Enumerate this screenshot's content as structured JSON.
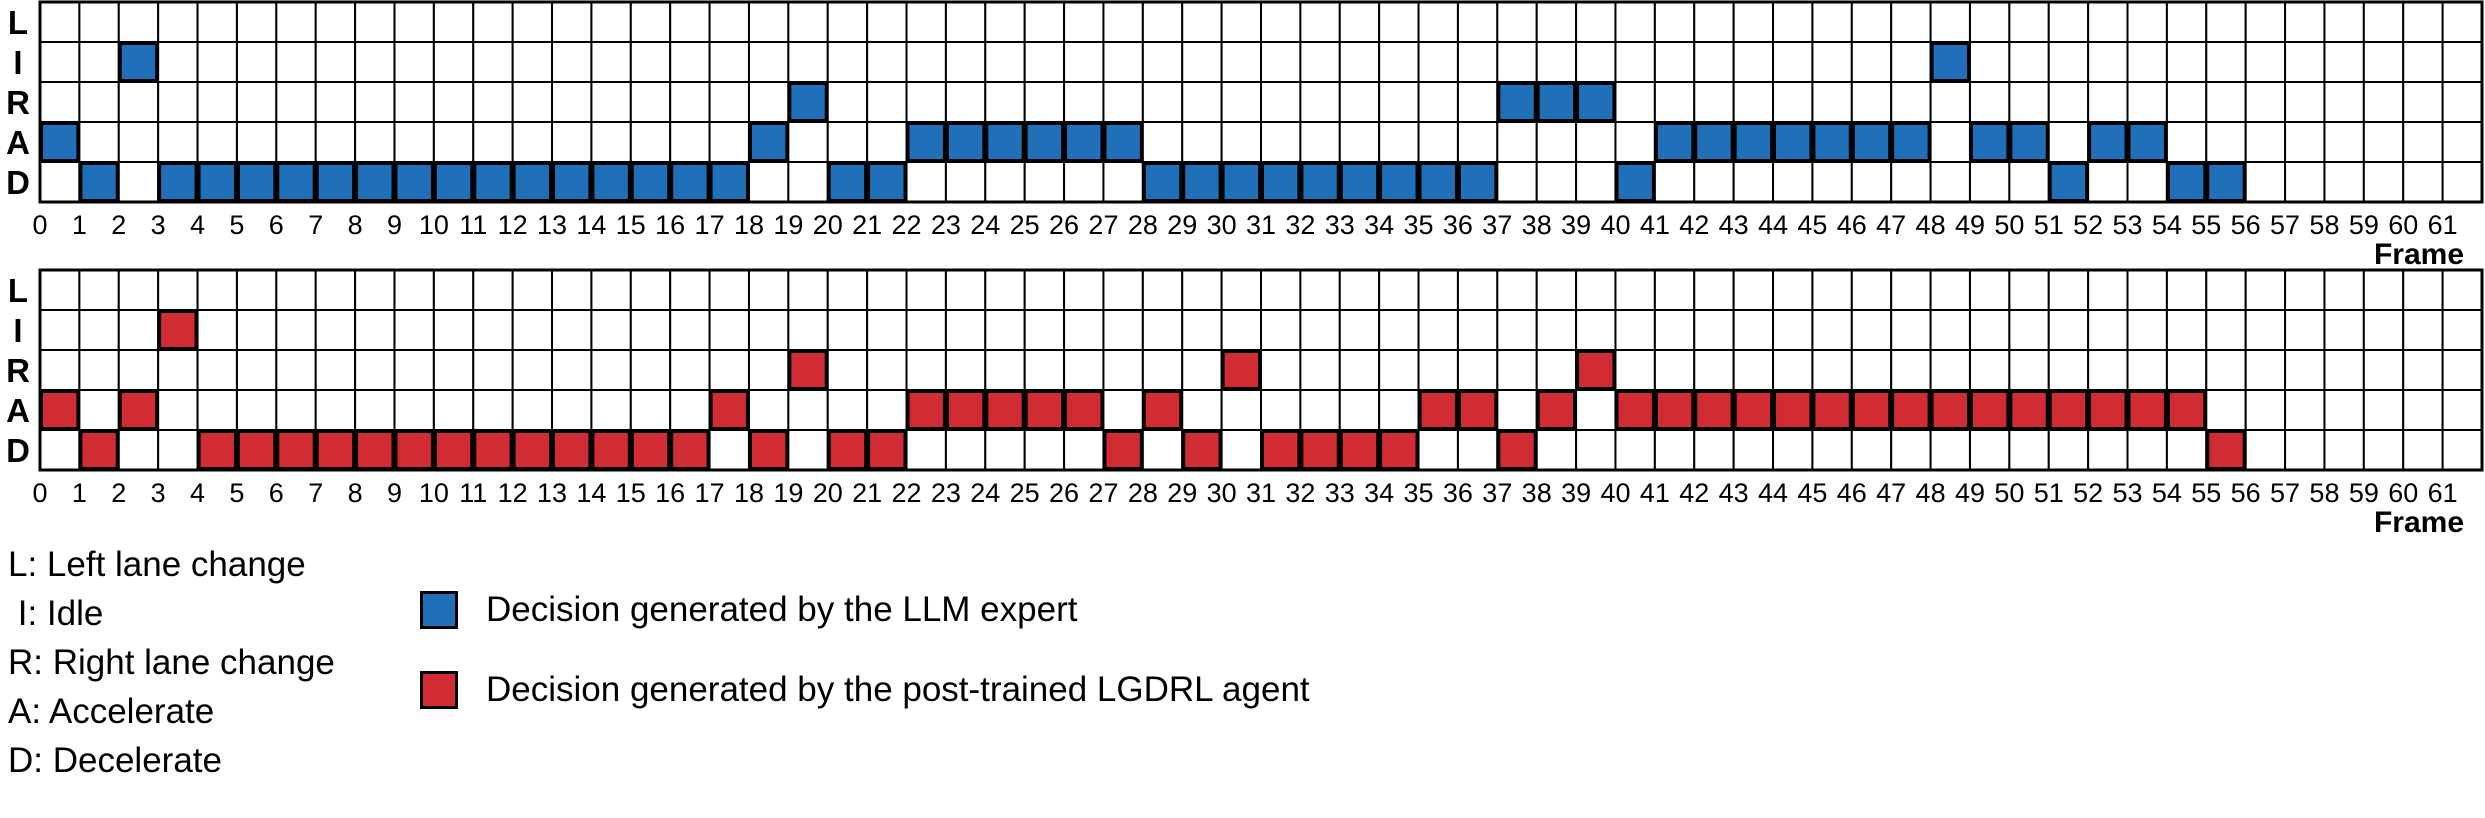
{
  "chart_data": [
    {
      "type": "table",
      "rows": [
        "L",
        "I",
        "R",
        "A",
        "D"
      ],
      "frames": [
        0,
        1,
        2,
        3,
        4,
        5,
        6,
        7,
        8,
        9,
        10,
        11,
        12,
        13,
        14,
        15,
        16,
        17,
        18,
        19,
        20,
        21,
        22,
        23,
        24,
        25,
        26,
        27,
        28,
        29,
        30,
        31,
        32,
        33,
        34,
        35,
        36,
        37,
        38,
        39,
        40,
        41,
        42,
        43,
        44,
        45,
        46,
        47,
        48,
        49,
        50,
        51,
        52,
        53,
        54,
        55,
        56,
        57,
        58,
        59,
        60,
        61
      ],
      "xlabel": "Frame",
      "series_name": "Decision generated by the LLM expert",
      "color": "#1f70b8",
      "decisions": [
        "A",
        "D",
        "I",
        "D",
        "D",
        "D",
        "D",
        "D",
        "D",
        "D",
        "D",
        "D",
        "D",
        "D",
        "D",
        "D",
        "D",
        "D",
        "A",
        "R",
        "D",
        "D",
        "A",
        "A",
        "A",
        "A",
        "A",
        "A",
        "D",
        "D",
        "D",
        "D",
        "D",
        "D",
        "D",
        "D",
        "D",
        "R",
        "R",
        "R",
        "D",
        "A",
        "A",
        "A",
        "A",
        "A",
        "A",
        "A",
        "I",
        "A",
        "A",
        "D",
        "A",
        "A",
        "D",
        "D",
        null,
        null,
        null,
        null,
        null,
        null
      ]
    },
    {
      "type": "table",
      "rows": [
        "L",
        "I",
        "R",
        "A",
        "D"
      ],
      "frames": [
        0,
        1,
        2,
        3,
        4,
        5,
        6,
        7,
        8,
        9,
        10,
        11,
        12,
        13,
        14,
        15,
        16,
        17,
        18,
        19,
        20,
        21,
        22,
        23,
        24,
        25,
        26,
        27,
        28,
        29,
        30,
        31,
        32,
        33,
        34,
        35,
        36,
        37,
        38,
        39,
        40,
        41,
        42,
        43,
        44,
        45,
        46,
        47,
        48,
        49,
        50,
        51,
        52,
        53,
        54,
        55,
        56,
        57,
        58,
        59,
        60,
        61
      ],
      "xlabel": "Frame",
      "series_name": "Decision generated by the post-trained LGDRL agent",
      "color": "#d12b34",
      "decisions": [
        "A",
        "D",
        "A",
        "I",
        "D",
        "D",
        "D",
        "D",
        "D",
        "D",
        "D",
        "D",
        "D",
        "D",
        "D",
        "D",
        "D",
        "A",
        "D",
        "R",
        "D",
        "D",
        "A",
        "A",
        "A",
        "A",
        "A",
        "D",
        "A",
        "D",
        "R",
        "D",
        "D",
        "D",
        "D",
        "A",
        "A",
        "D",
        "A",
        "R",
        "A",
        "A",
        "A",
        "A",
        "A",
        "A",
        "A",
        "A",
        "A",
        "A",
        "A",
        "A",
        "A",
        "A",
        "A",
        "D",
        null,
        null,
        null,
        null,
        null,
        null
      ]
    }
  ],
  "legend": {
    "abbreviations": [
      "L: Left lane change",
      " I: Idle",
      "R: Right lane change",
      "A: Accelerate",
      "D: Decelerate"
    ],
    "keys": [
      {
        "label": "Decision generated by the LLM expert",
        "color": "#1f70b8"
      },
      {
        "label": "Decision generated by the post-trained LGDRL agent",
        "color": "#d12b34"
      }
    ]
  }
}
